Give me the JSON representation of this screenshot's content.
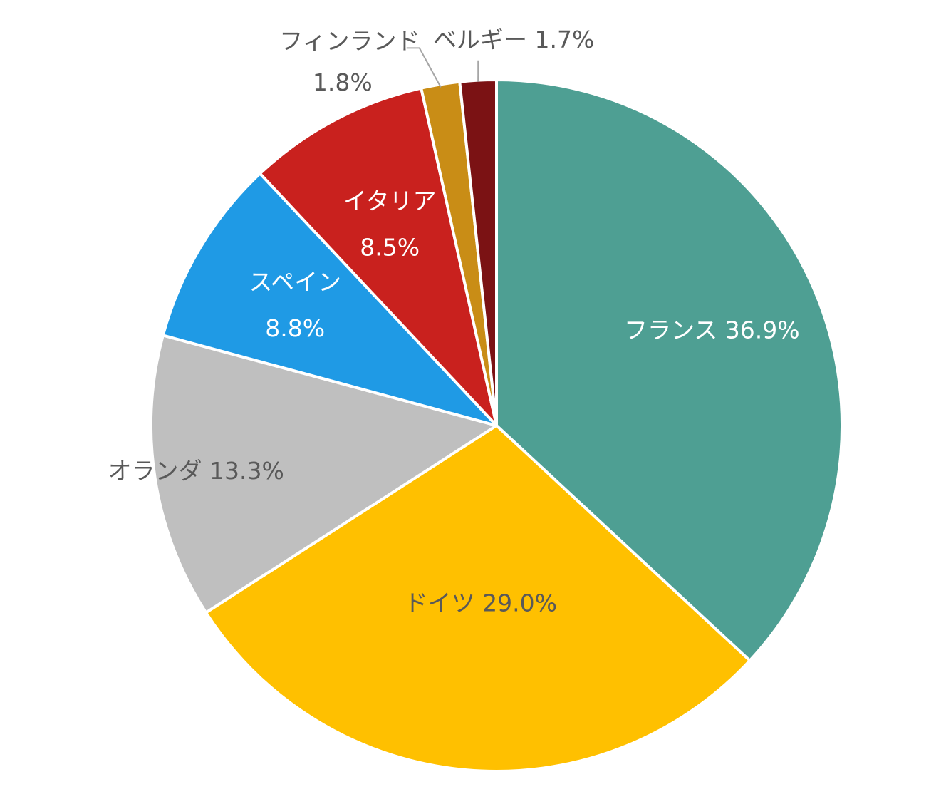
{
  "chart_data": {
    "type": "pie",
    "title": "",
    "start_angle_deg": 0,
    "direction": "clockwise",
    "legend": "none",
    "slices": [
      {
        "label": "フランス",
        "value": 36.9,
        "display": "36.9%",
        "color": "#4e9f93",
        "text_color": "#ffffff",
        "layout": "inside-inline"
      },
      {
        "label": "ドイツ",
        "value": 29.0,
        "display": "29.0%",
        "color": "#ffc000",
        "text_color": "#595959",
        "layout": "inside-inline"
      },
      {
        "label": "オランダ",
        "value": 13.3,
        "display": "13.3%",
        "color": "#bfbfbf",
        "text_color": "#595959",
        "layout": "inside-inline"
      },
      {
        "label": "スペイン",
        "value": 8.8,
        "display": "8.8%",
        "color": "#1f9ae5",
        "text_color": "#ffffff",
        "layout": "inside-stacked"
      },
      {
        "label": "イタリア",
        "value": 8.5,
        "display": "8.5%",
        "color": "#c9211e",
        "text_color": "#ffffff",
        "layout": "inside-stacked"
      },
      {
        "label": "フィンランド",
        "value": 1.8,
        "display": "1.8%",
        "color": "#c98d16",
        "text_color": "#595959",
        "layout": "outside-stacked"
      },
      {
        "label": "ベルギー",
        "value": 1.7,
        "display": "1.7%",
        "color": "#7b1214",
        "text_color": "#595959",
        "layout": "outside-inline"
      }
    ]
  }
}
